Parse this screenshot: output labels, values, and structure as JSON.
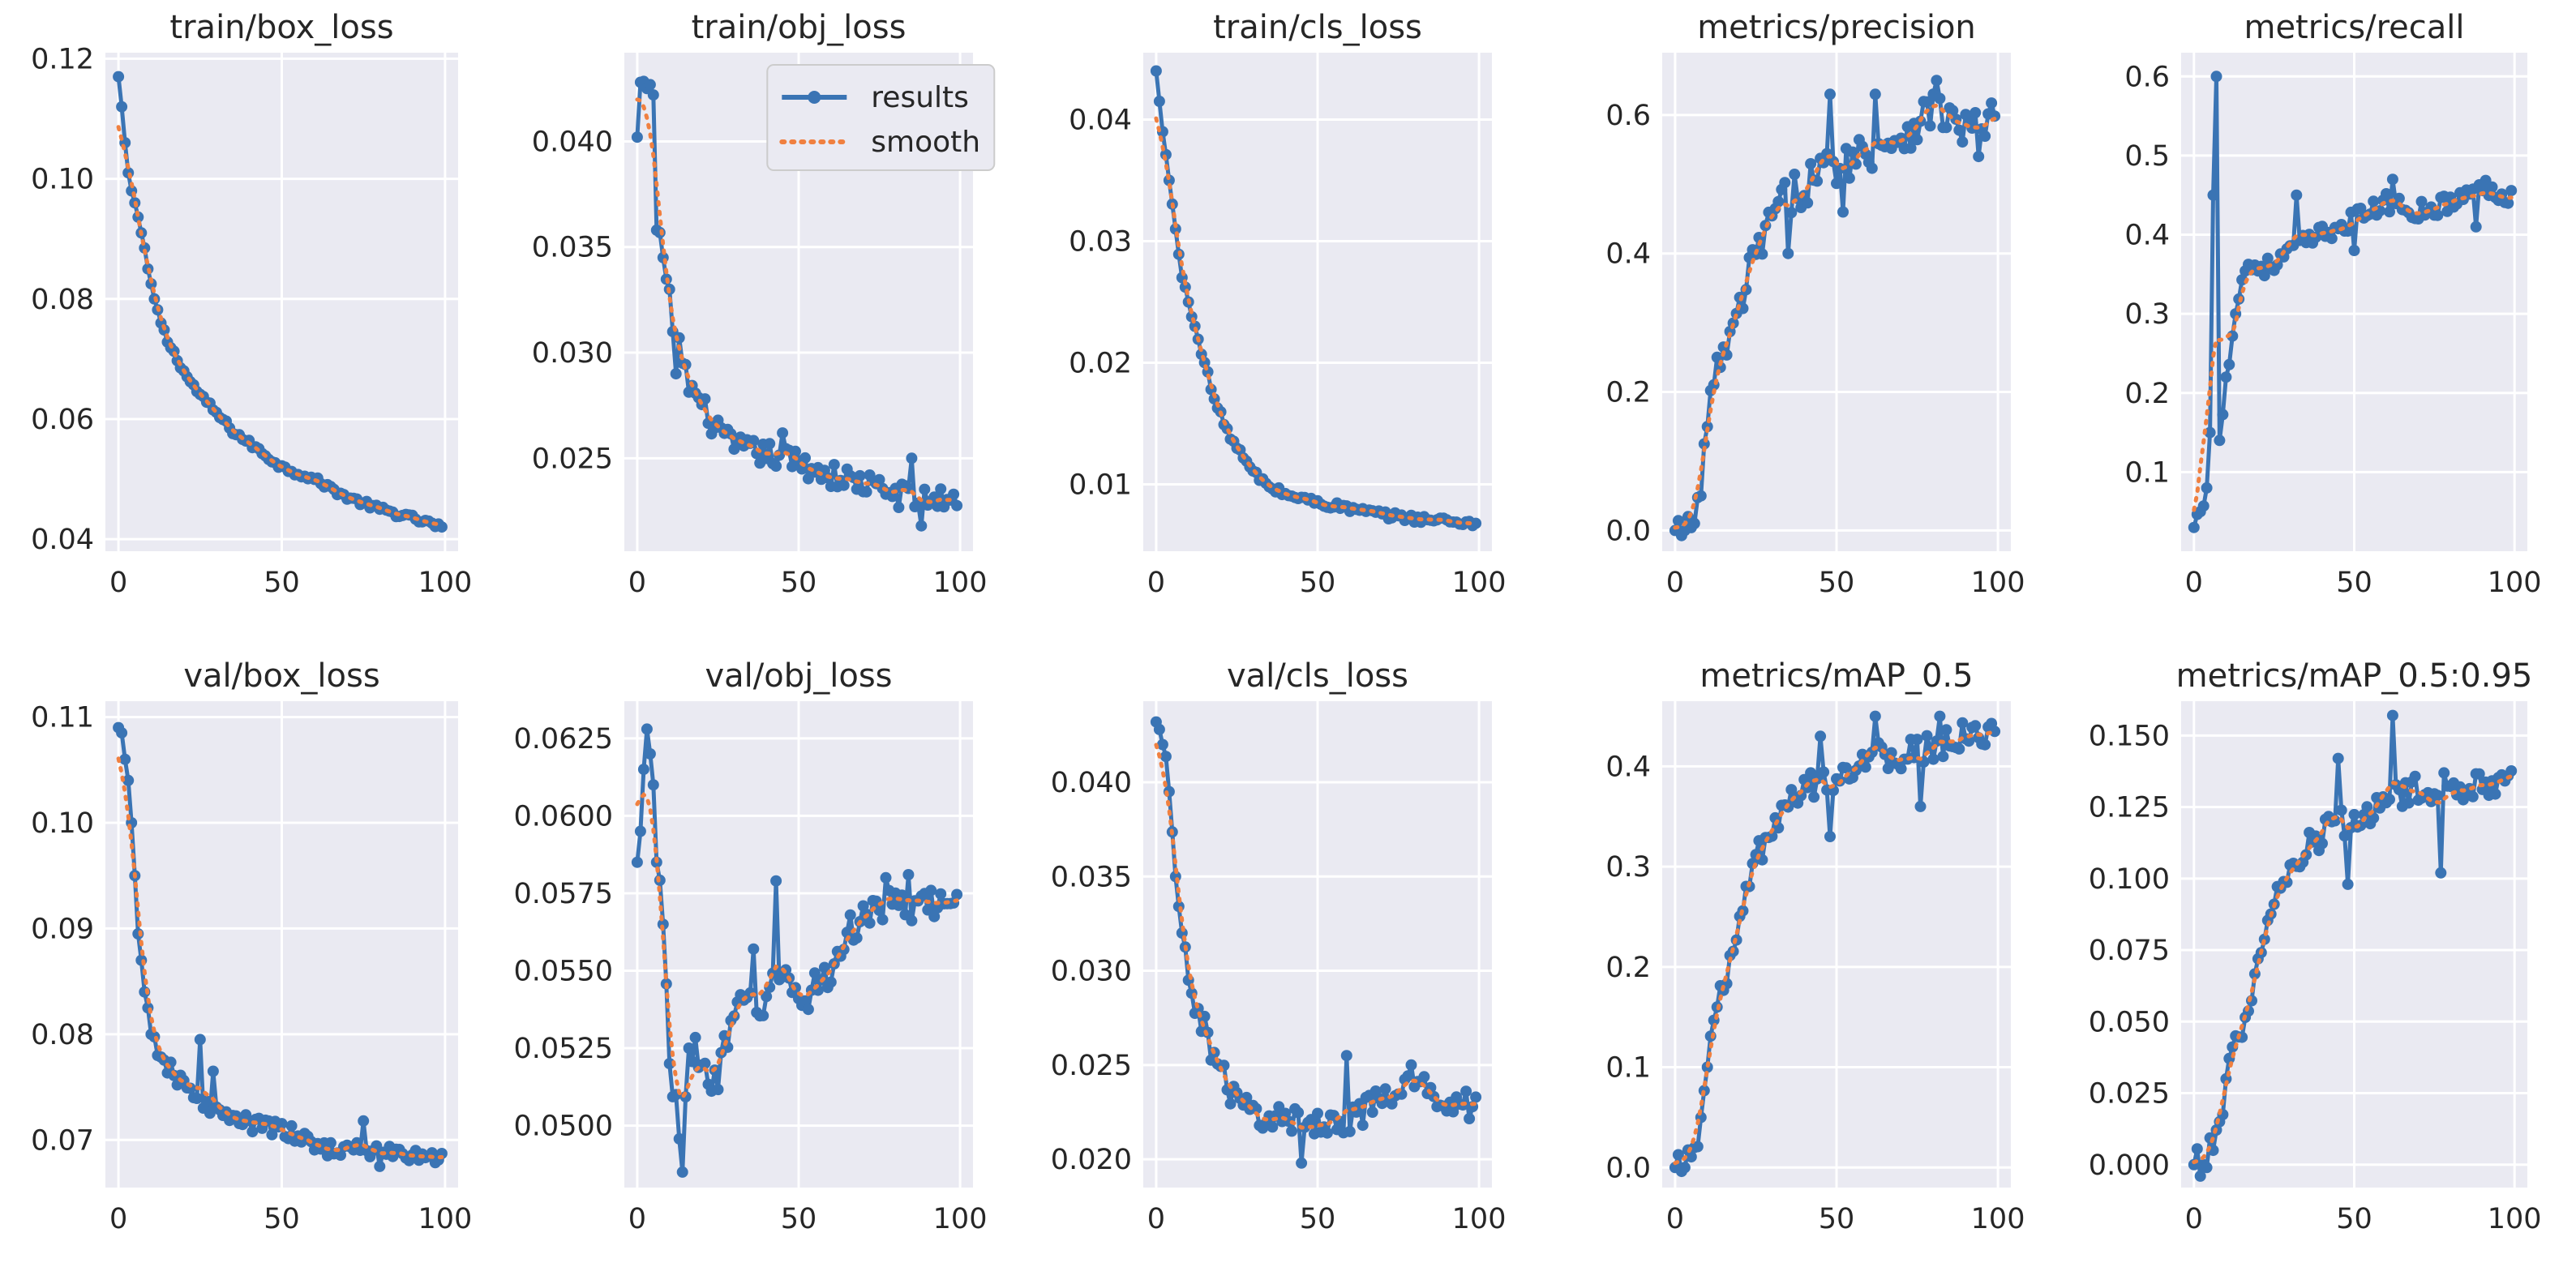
{
  "legend": {
    "results_label": "results",
    "smooth_label": "smooth"
  },
  "colors": {
    "results": "#3a74b4",
    "smooth": "#f08040",
    "panel": "#eaeaf2"
  },
  "chart_data": [
    {
      "type": "line",
      "title": "train/box_loss",
      "xlim": [
        -4,
        104
      ],
      "ylim": [
        0.038,
        0.121
      ],
      "xticks": [
        0,
        50,
        100
      ],
      "yticks": [
        0.04,
        0.06,
        0.08,
        0.1,
        0.12
      ],
      "ytick_labels": [
        "0.04",
        "0.06",
        "0.08",
        "0.10",
        "0.12"
      ],
      "legend": false,
      "anchors": [
        [
          0,
          0.117
        ],
        [
          1,
          0.112
        ],
        [
          2,
          0.106
        ],
        [
          3,
          0.101
        ],
        [
          4,
          0.098
        ],
        [
          5,
          0.096
        ],
        [
          7,
          0.091
        ],
        [
          9,
          0.085
        ],
        [
          11,
          0.08
        ],
        [
          13,
          0.076
        ],
        [
          15,
          0.073
        ],
        [
          18,
          0.07
        ],
        [
          21,
          0.067
        ],
        [
          25,
          0.064
        ],
        [
          30,
          0.061
        ],
        [
          35,
          0.058
        ],
        [
          40,
          0.056
        ],
        [
          50,
          0.052
        ],
        [
          60,
          0.05
        ],
        [
          70,
          0.047
        ],
        [
          80,
          0.045
        ],
        [
          90,
          0.0435
        ],
        [
          99,
          0.042
        ]
      ],
      "noise": 0.0005,
      "spike_pts": []
    },
    {
      "type": "line",
      "title": "train/obj_loss",
      "xlim": [
        -4,
        104
      ],
      "ylim": [
        0.0206,
        0.0442
      ],
      "xticks": [
        0,
        50,
        100
      ],
      "yticks": [
        0.025,
        0.03,
        0.035,
        0.04
      ],
      "ytick_labels": [
        "0.025",
        "0.030",
        "0.035",
        "0.040"
      ],
      "legend": true,
      "anchors": [
        [
          0,
          0.0402
        ],
        [
          1,
          0.0428
        ],
        [
          3,
          0.0425
        ],
        [
          5,
          0.0422
        ],
        [
          6,
          0.0358
        ],
        [
          8,
          0.0345
        ],
        [
          10,
          0.033
        ],
        [
          12,
          0.029
        ],
        [
          14,
          0.0295
        ],
        [
          16,
          0.0285
        ],
        [
          20,
          0.0275
        ],
        [
          25,
          0.0262
        ],
        [
          30,
          0.0255
        ],
        [
          40,
          0.0252
        ],
        [
          50,
          0.0248
        ],
        [
          60,
          0.0242
        ],
        [
          70,
          0.0238
        ],
        [
          80,
          0.0233
        ],
        [
          90,
          0.023
        ],
        [
          99,
          0.0232
        ]
      ],
      "noise": 0.0006,
      "spike_pts": [
        [
          13,
          0.0307
        ],
        [
          25,
          0.0268
        ],
        [
          45,
          0.0262
        ],
        [
          85,
          0.025
        ],
        [
          88,
          0.0218
        ]
      ]
    },
    {
      "type": "line",
      "title": "train/cls_loss",
      "xlim": [
        -4,
        104
      ],
      "ylim": [
        0.0045,
        0.0455
      ],
      "xticks": [
        0,
        50,
        100
      ],
      "yticks": [
        0.01,
        0.02,
        0.03,
        0.04
      ],
      "ytick_labels": [
        "0.01",
        "0.02",
        "0.03",
        "0.04"
      ],
      "legend": false,
      "anchors": [
        [
          0,
          0.044
        ],
        [
          1,
          0.0415
        ],
        [
          2,
          0.039
        ],
        [
          4,
          0.035
        ],
        [
          6,
          0.031
        ],
        [
          8,
          0.027
        ],
        [
          10,
          0.025
        ],
        [
          12,
          0.023
        ],
        [
          15,
          0.02
        ],
        [
          18,
          0.017
        ],
        [
          21,
          0.015
        ],
        [
          25,
          0.013
        ],
        [
          30,
          0.011
        ],
        [
          35,
          0.0098
        ],
        [
          40,
          0.0092
        ],
        [
          50,
          0.0085
        ],
        [
          60,
          0.008
        ],
        [
          70,
          0.0075
        ],
        [
          80,
          0.0072
        ],
        [
          90,
          0.007
        ],
        [
          99,
          0.0068
        ]
      ],
      "noise": 0.0003,
      "spike_pts": []
    },
    {
      "type": "line",
      "title": "metrics/precision",
      "xlim": [
        -4,
        104
      ],
      "ylim": [
        -0.03,
        0.69
      ],
      "xticks": [
        0,
        50,
        100
      ],
      "yticks": [
        0.0,
        0.2,
        0.4,
        0.6
      ],
      "ytick_labels": [
        "0.0",
        "0.2",
        "0.4",
        "0.6"
      ],
      "legend": false,
      "anchors": [
        [
          0,
          0.0
        ],
        [
          3,
          0.0
        ],
        [
          6,
          0.01
        ],
        [
          8,
          0.05
        ],
        [
          10,
          0.15
        ],
        [
          13,
          0.25
        ],
        [
          16,
          0.25
        ],
        [
          20,
          0.32
        ],
        [
          25,
          0.4
        ],
        [
          30,
          0.45
        ],
        [
          35,
          0.48
        ],
        [
          40,
          0.5
        ],
        [
          50,
          0.53
        ],
        [
          60,
          0.55
        ],
        [
          70,
          0.57
        ],
        [
          80,
          0.61
        ],
        [
          90,
          0.58
        ],
        [
          99,
          0.59
        ]
      ],
      "noise": 0.03,
      "spike_pts": [
        [
          35,
          0.4
        ],
        [
          48,
          0.63
        ],
        [
          52,
          0.46
        ],
        [
          62,
          0.63
        ],
        [
          81,
          0.65
        ],
        [
          94,
          0.54
        ]
      ]
    },
    {
      "type": "line",
      "title": "metrics/recall",
      "xlim": [
        -4,
        104
      ],
      "ylim": [
        0.0,
        0.63
      ],
      "xticks": [
        0,
        50,
        100
      ],
      "yticks": [
        0.1,
        0.2,
        0.3,
        0.4,
        0.5,
        0.6
      ],
      "ytick_labels": [
        "0.1",
        "0.2",
        "0.3",
        "0.4",
        "0.5",
        "0.6"
      ],
      "legend": false,
      "anchors": [
        [
          0,
          0.03
        ],
        [
          2,
          0.05
        ],
        [
          4,
          0.08
        ],
        [
          5,
          0.15
        ],
        [
          6,
          0.45
        ],
        [
          7,
          0.6
        ],
        [
          8,
          0.14
        ],
        [
          10,
          0.22
        ],
        [
          13,
          0.3
        ],
        [
          16,
          0.36
        ],
        [
          20,
          0.36
        ],
        [
          25,
          0.36
        ],
        [
          30,
          0.38
        ],
        [
          40,
          0.4
        ],
        [
          50,
          0.42
        ],
        [
          60,
          0.44
        ],
        [
          70,
          0.43
        ],
        [
          80,
          0.44
        ],
        [
          90,
          0.46
        ],
        [
          99,
          0.45
        ]
      ],
      "noise": 0.012,
      "spike_pts": [
        [
          32,
          0.45
        ],
        [
          50,
          0.38
        ],
        [
          62,
          0.47
        ],
        [
          88,
          0.41
        ]
      ]
    },
    {
      "type": "line",
      "title": "val/box_loss",
      "xlim": [
        -4,
        104
      ],
      "ylim": [
        0.0655,
        0.1115
      ],
      "xticks": [
        0,
        50,
        100
      ],
      "yticks": [
        0.07,
        0.08,
        0.09,
        0.1,
        0.11
      ],
      "ytick_labels": [
        "0.07",
        "0.08",
        "0.09",
        "0.10",
        "0.11"
      ],
      "legend": false,
      "anchors": [
        [
          0,
          0.109
        ],
        [
          1,
          0.1085
        ],
        [
          2,
          0.106
        ],
        [
          3,
          0.104
        ],
        [
          4,
          0.1
        ],
        [
          5,
          0.095
        ],
        [
          6,
          0.0895
        ],
        [
          7,
          0.087
        ],
        [
          8,
          0.084
        ],
        [
          10,
          0.08
        ],
        [
          12,
          0.078
        ],
        [
          15,
          0.077
        ],
        [
          20,
          0.075
        ],
        [
          25,
          0.074
        ],
        [
          30,
          0.0725
        ],
        [
          40,
          0.0715
        ],
        [
          50,
          0.071
        ],
        [
          60,
          0.0695
        ],
        [
          70,
          0.069
        ],
        [
          80,
          0.069
        ],
        [
          90,
          0.0685
        ],
        [
          99,
          0.0682
        ]
      ],
      "noise": 0.0008,
      "spike_pts": [
        [
          25,
          0.0795
        ],
        [
          29,
          0.0765
        ],
        [
          75,
          0.0718
        ],
        [
          80,
          0.0675
        ]
      ]
    },
    {
      "type": "line",
      "title": "val/obj_loss",
      "xlim": [
        -4,
        104
      ],
      "ylim": [
        0.048,
        0.0637
      ],
      "xticks": [
        0,
        50,
        100
      ],
      "yticks": [
        0.05,
        0.0525,
        0.055,
        0.0575,
        0.06,
        0.0625
      ],
      "ytick_labels": [
        "0.0500",
        "0.0525",
        "0.0550",
        "0.0575",
        "0.0600",
        "0.0625"
      ],
      "legend": false,
      "anchors": [
        [
          0,
          0.0585
        ],
        [
          1,
          0.0595
        ],
        [
          2,
          0.0615
        ],
        [
          3,
          0.0628
        ],
        [
          4,
          0.062
        ],
        [
          5,
          0.061
        ],
        [
          6,
          0.0585
        ],
        [
          8,
          0.0565
        ],
        [
          10,
          0.052
        ],
        [
          12,
          0.051
        ],
        [
          14,
          0.0488
        ],
        [
          16,
          0.0525
        ],
        [
          20,
          0.052
        ],
        [
          25,
          0.0515
        ],
        [
          30,
          0.0535
        ],
        [
          35,
          0.054
        ],
        [
          40,
          0.054
        ],
        [
          45,
          0.055
        ],
        [
          50,
          0.054
        ],
        [
          55,
          0.0545
        ],
        [
          60,
          0.055
        ],
        [
          65,
          0.056
        ],
        [
          70,
          0.057
        ],
        [
          80,
          0.057
        ],
        [
          90,
          0.057
        ],
        [
          99,
          0.0573
        ]
      ],
      "noise": 0.0006,
      "spike_pts": [
        [
          14,
          0.0485
        ],
        [
          36,
          0.0557
        ],
        [
          43,
          0.0579
        ],
        [
          77,
          0.058
        ],
        [
          84,
          0.0581
        ]
      ]
    },
    {
      "type": "line",
      "title": "val/cls_loss",
      "xlim": [
        -4,
        104
      ],
      "ylim": [
        0.0185,
        0.0443
      ],
      "xticks": [
        0,
        50,
        100
      ],
      "yticks": [
        0.02,
        0.025,
        0.03,
        0.035,
        0.04
      ],
      "ytick_labels": [
        "0.020",
        "0.025",
        "0.030",
        "0.035",
        "0.040"
      ],
      "legend": false,
      "anchors": [
        [
          0,
          0.0432
        ],
        [
          1,
          0.0428
        ],
        [
          2,
          0.042
        ],
        [
          4,
          0.0395
        ],
        [
          6,
          0.035
        ],
        [
          8,
          0.032
        ],
        [
          10,
          0.0295
        ],
        [
          13,
          0.028
        ],
        [
          16,
          0.0265
        ],
        [
          20,
          0.0245
        ],
        [
          25,
          0.023
        ],
        [
          30,
          0.0225
        ],
        [
          40,
          0.022
        ],
        [
          50,
          0.022
        ],
        [
          60,
          0.0222
        ],
        [
          70,
          0.023
        ],
        [
          80,
          0.024
        ],
        [
          90,
          0.0232
        ],
        [
          99,
          0.0228
        ]
      ],
      "noise": 0.0008,
      "spike_pts": [
        [
          45,
          0.0198
        ],
        [
          59,
          0.0255
        ],
        [
          79,
          0.025
        ]
      ]
    },
    {
      "type": "line",
      "title": "metrics/mAP_0.5",
      "xlim": [
        -4,
        104
      ],
      "ylim": [
        -0.02,
        0.465
      ],
      "xticks": [
        0,
        50,
        100
      ],
      "yticks": [
        0.0,
        0.1,
        0.2,
        0.3,
        0.4
      ],
      "ytick_labels": [
        "0.0",
        "0.1",
        "0.2",
        "0.3",
        "0.4"
      ],
      "legend": false,
      "anchors": [
        [
          0,
          0.0
        ],
        [
          3,
          0.0
        ],
        [
          6,
          0.02
        ],
        [
          8,
          0.05
        ],
        [
          10,
          0.1
        ],
        [
          13,
          0.16
        ],
        [
          16,
          0.18
        ],
        [
          20,
          0.25
        ],
        [
          25,
          0.31
        ],
        [
          30,
          0.33
        ],
        [
          35,
          0.36
        ],
        [
          40,
          0.38
        ],
        [
          50,
          0.39
        ],
        [
          60,
          0.41
        ],
        [
          70,
          0.41
        ],
        [
          80,
          0.42
        ],
        [
          90,
          0.43
        ],
        [
          99,
          0.43
        ]
      ],
      "noise": 0.015,
      "spike_pts": [
        [
          45,
          0.43
        ],
        [
          48,
          0.33
        ],
        [
          62,
          0.45
        ],
        [
          76,
          0.36
        ],
        [
          82,
          0.45
        ]
      ]
    },
    {
      "type": "line",
      "title": "metrics/mAP_0.5:0.95",
      "xlim": [
        -4,
        104
      ],
      "ylim": [
        -0.008,
        0.162
      ],
      "xticks": [
        0,
        50,
        100
      ],
      "yticks": [
        0.0,
        0.025,
        0.05,
        0.075,
        0.1,
        0.125,
        0.15
      ],
      "ytick_labels": [
        "0.000",
        "0.025",
        "0.050",
        "0.075",
        "0.100",
        "0.125",
        "0.150"
      ],
      "legend": false,
      "anchors": [
        [
          0,
          0.0
        ],
        [
          3,
          0.0
        ],
        [
          6,
          0.005
        ],
        [
          8,
          0.015
        ],
        [
          10,
          0.03
        ],
        [
          13,
          0.045
        ],
        [
          16,
          0.05
        ],
        [
          20,
          0.07
        ],
        [
          25,
          0.09
        ],
        [
          30,
          0.1
        ],
        [
          35,
          0.11
        ],
        [
          40,
          0.115
        ],
        [
          50,
          0.12
        ],
        [
          60,
          0.128
        ],
        [
          70,
          0.13
        ],
        [
          80,
          0.132
        ],
        [
          90,
          0.134
        ],
        [
          99,
          0.136
        ]
      ],
      "noise": 0.006,
      "spike_pts": [
        [
          45,
          0.142
        ],
        [
          48,
          0.098
        ],
        [
          62,
          0.157
        ],
        [
          77,
          0.102
        ]
      ]
    }
  ]
}
